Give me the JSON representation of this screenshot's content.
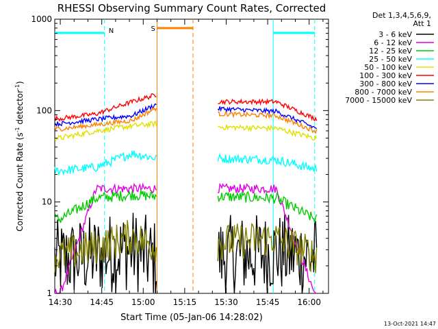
{
  "chart_data": {
    "type": "line",
    "title": "RHESSI Observing Summary Count Rates, Corrected",
    "xlabel": "Start Time (05-Jan-06 14:28:02)",
    "ylabel_main": "Corrected Count Rate (s",
    "ylabel_sup1": "-1",
    "ylabel_mid": " detector",
    "ylabel_sup2": "-1",
    "ylabel_end": ")",
    "xlim": [
      "14:28",
      "16:07"
    ],
    "yscale": "log",
    "ylim": [
      1,
      1000
    ],
    "x_ticks": [
      {
        "label": "14:30",
        "t": "14:30"
      },
      {
        "label": "14:45",
        "t": "14:45"
      },
      {
        "label": "15:00",
        "t": "15:00"
      },
      {
        "label": "15:15",
        "t": "15:15"
      },
      {
        "label": "15:30",
        "t": "15:30"
      },
      {
        "label": "15:45",
        "t": "15:45"
      },
      {
        "label": "16:00",
        "t": "16:00"
      }
    ],
    "y_ticks": [
      {
        "label": "1",
        "v": 1
      },
      {
        "label": "10",
        "v": 10
      },
      {
        "label": "100",
        "v": 100
      },
      {
        "label": "1000",
        "v": 1000
      }
    ],
    "legend_header": [
      "Det 1,3,4,5,6,9,",
      "Att 1"
    ],
    "series": [
      {
        "name": "3 - 6 keV",
        "color": "#000000",
        "level": [
          2.3,
          2.6,
          3.0,
          2.3,
          2.5,
          2.8,
          2.5
        ],
        "noise": 0.45
      },
      {
        "name": "6 - 12 keV",
        "color": "#e000e0",
        "level": [
          1.0,
          14.0,
          14.0,
          14.0,
          14.0,
          14.0,
          1.0
        ],
        "noise": 0.05
      },
      {
        "name": "12 - 25 keV",
        "color": "#00cc00",
        "level": [
          6.5,
          11.0,
          12.0,
          11.5,
          11.5,
          11.0,
          6.5
        ],
        "noise": 0.06
      },
      {
        "name": "25 - 50 keV",
        "color": "#00ffff",
        "level": [
          22.0,
          24.0,
          34.0,
          30.0,
          30.0,
          29.0,
          23.0
        ],
        "noise": 0.05
      },
      {
        "name": "50 - 100 keV",
        "color": "#e0e000",
        "level": [
          50.0,
          60.0,
          68.0,
          72.0,
          66.0,
          64.0,
          50.0
        ],
        "noise": 0.03
      },
      {
        "name": "100 - 300 keV",
        "color": "#ff0000",
        "level": [
          82.0,
          92.0,
          125.0,
          150.0,
          125.0,
          125.0,
          82.0
        ],
        "noise": 0.025
      },
      {
        "name": "300 - 800 keV",
        "color": "#0000ff",
        "level": [
          72.0,
          80.0,
          88.0,
          118.0,
          105.0,
          98.0,
          65.0
        ],
        "noise": 0.025
      },
      {
        "name": "800 - 7000 keV",
        "color": "#ff8000",
        "level": [
          63.0,
          70.0,
          78.0,
          108.0,
          92.0,
          88.0,
          60.0
        ],
        "noise": 0.025
      },
      {
        "name": "7000 - 15000 keV",
        "color": "#808000",
        "level": [
          2.6,
          3.2,
          4.2,
          3.2,
          3.6,
          4.0,
          2.6
        ],
        "noise": 0.2
      }
    ],
    "gap": {
      "start": "15:05",
      "end": "15:27"
    },
    "segment_times": [
      "14:30",
      "14:43",
      "14:56",
      "15:05",
      "15:27",
      "15:48",
      "16:02"
    ],
    "annotations": {
      "N_label": "N",
      "S_label": "S",
      "night_intervals": [
        [
          "14:28",
          "14:46"
        ],
        [
          "15:47",
          "16:02"
        ]
      ],
      "saa_interval": [
        "15:05",
        "15:18"
      ],
      "night_color": "#00ffff",
      "saa_color": "#ff8000"
    },
    "footer_date": "13-Oct-2021 14:47"
  }
}
